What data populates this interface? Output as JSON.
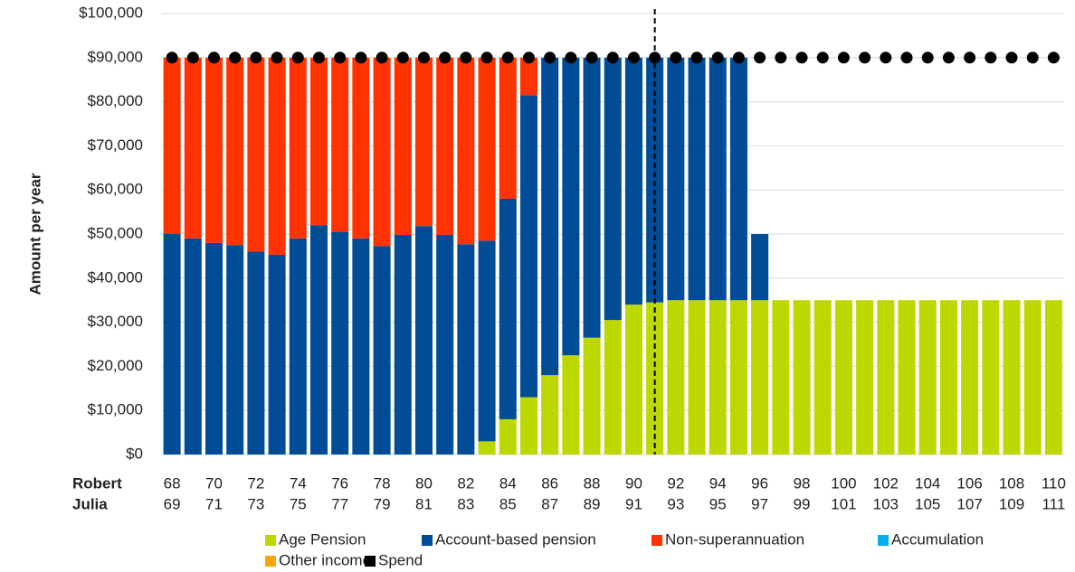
{
  "chart_data": {
    "type": "stacked_bar",
    "y_axis_label": "Amount per year",
    "category_rows": [
      {
        "name": "Robert",
        "labels": [
          "68",
          null,
          "70",
          null,
          "72",
          null,
          "74",
          null,
          "76",
          null,
          "78",
          null,
          "80",
          null,
          "82",
          null,
          "84",
          null,
          "86",
          null,
          "88",
          null,
          "90",
          null,
          "92",
          null,
          "94",
          null,
          "96",
          null,
          "98",
          null,
          "100",
          null,
          "102",
          null,
          "104",
          null,
          "106",
          null,
          "108",
          null,
          "110"
        ]
      },
      {
        "name": "Julia",
        "labels": [
          "69",
          null,
          "71",
          null,
          "73",
          null,
          "75",
          null,
          "77",
          null,
          "79",
          null,
          "81",
          null,
          "83",
          null,
          "85",
          null,
          "87",
          null,
          "89",
          null,
          "91",
          null,
          "93",
          null,
          "95",
          null,
          "97",
          null,
          "99",
          null,
          "101",
          null,
          "103",
          null,
          "105",
          null,
          "107",
          null,
          "109",
          null,
          "111"
        ]
      }
    ],
    "series": [
      {
        "name": "Age Pension",
        "color": "#bcd800",
        "values": [
          0,
          0,
          0,
          0,
          0,
          0,
          0,
          0,
          0,
          0,
          0,
          0,
          0,
          0,
          0,
          3000,
          8000,
          13000,
          18000,
          22500,
          26500,
          30500,
          34000,
          34500,
          35000,
          35000,
          35000,
          35000,
          35000,
          35000,
          35000,
          35000,
          35000,
          35000,
          35000,
          35000,
          35000,
          35000,
          35000,
          35000,
          35000,
          35000,
          35000
        ]
      },
      {
        "name": "Account-based pension",
        "color": "#004c97",
        "values": [
          50000,
          49000,
          48000,
          47500,
          46000,
          45300,
          49000,
          52000,
          50500,
          49000,
          47300,
          49800,
          51800,
          49800,
          47700,
          45500,
          50000,
          68500,
          72000,
          67500,
          63500,
          59500,
          56000,
          55500,
          55000,
          55000,
          55000,
          55000,
          15000,
          0,
          0,
          0,
          0,
          0,
          0,
          0,
          0,
          0,
          0,
          0,
          0,
          0,
          0
        ]
      },
      {
        "name": "Non-superannuation",
        "color": "#ff3300",
        "values": [
          40000,
          41000,
          42000,
          42500,
          44000,
          44700,
          41000,
          38000,
          39500,
          41000,
          42700,
          40200,
          38200,
          40200,
          42300,
          41500,
          32000,
          8500,
          0,
          0,
          0,
          0,
          0,
          0,
          0,
          0,
          0,
          0,
          0,
          0,
          0,
          0,
          0,
          0,
          0,
          0,
          0,
          0,
          0,
          0,
          0,
          0,
          0
        ]
      },
      {
        "name": "Accumulation",
        "color": "#00b0f0",
        "values": [
          0,
          0,
          0,
          0,
          0,
          0,
          0,
          0,
          0,
          0,
          0,
          0,
          0,
          0,
          0,
          0,
          0,
          0,
          0,
          0,
          0,
          0,
          0,
          0,
          0,
          0,
          0,
          0,
          0,
          0,
          0,
          0,
          0,
          0,
          0,
          0,
          0,
          0,
          0,
          0,
          0,
          0,
          0
        ]
      },
      {
        "name": "Other income",
        "color": "#ffa500",
        "values": [
          0,
          0,
          0,
          0,
          0,
          0,
          0,
          0,
          0,
          0,
          0,
          0,
          0,
          0,
          0,
          0,
          0,
          0,
          0,
          0,
          0,
          0,
          0,
          0,
          0,
          0,
          0,
          0,
          0,
          0,
          0,
          0,
          0,
          0,
          0,
          0,
          0,
          0,
          0,
          0,
          0,
          0,
          0
        ]
      }
    ],
    "spend": {
      "name": "Spend",
      "color": "#000000",
      "values": [
        90000,
        90000,
        90000,
        90000,
        90000,
        90000,
        90000,
        90000,
        90000,
        90000,
        90000,
        90000,
        90000,
        90000,
        90000,
        90000,
        90000,
        90000,
        90000,
        90000,
        90000,
        90000,
        90000,
        90000,
        90000,
        90000,
        90000,
        90000,
        90000,
        90000,
        90000,
        90000,
        90000,
        90000,
        90000,
        90000,
        90000,
        90000,
        90000,
        90000,
        90000,
        90000,
        90000
      ]
    },
    "vline_index": 23,
    "ylim": [
      0,
      100000
    ],
    "yticks": [
      {
        "value": 0,
        "label": "$0"
      },
      {
        "value": 10000,
        "label": "$10,000"
      },
      {
        "value": 20000,
        "label": "$20,000"
      },
      {
        "value": 30000,
        "label": "$30,000"
      },
      {
        "value": 40000,
        "label": "$40,000"
      },
      {
        "value": 50000,
        "label": "$50,000"
      },
      {
        "value": 60000,
        "label": "$60,000"
      },
      {
        "value": 70000,
        "label": "$70,000"
      },
      {
        "value": 80000,
        "label": "$80,000"
      },
      {
        "value": 90000,
        "label": "$90,000"
      },
      {
        "value": 100000,
        "label": "$100,000"
      }
    ],
    "grid": true
  }
}
